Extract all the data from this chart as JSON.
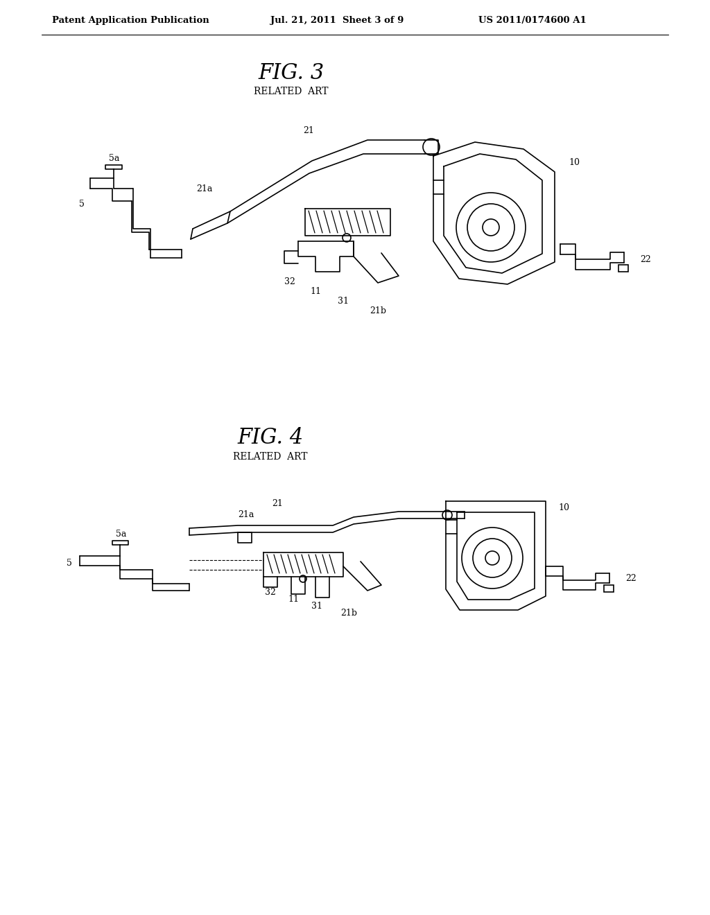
{
  "background_color": "#ffffff",
  "header_text": "Patent Application Publication",
  "header_date": "Jul. 21, 2011  Sheet 3 of 9",
  "header_patent": "US 2011/0174600 A1",
  "fig3_title": "FIG. 3",
  "fig3_subtitle": "RELATED  ART",
  "fig4_title": "FIG. 4",
  "fig4_subtitle": "RELATED  ART",
  "line_color": "#000000",
  "lw": 1.2
}
